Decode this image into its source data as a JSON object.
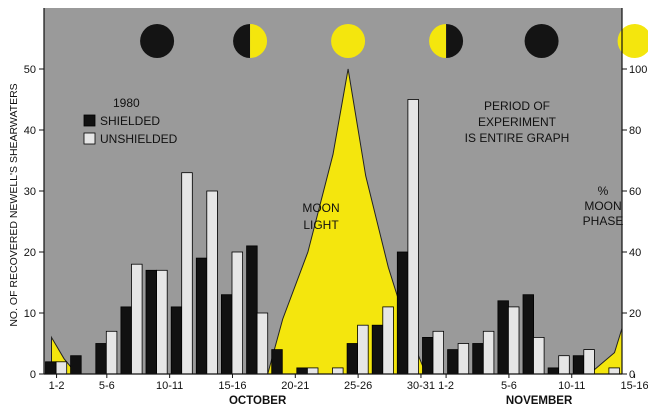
{
  "chart_data": {
    "type": "bar",
    "legend": {
      "year": "1980",
      "entries": [
        "SHIELDED",
        "UNSHIELDED"
      ],
      "placement": "top-left"
    },
    "series": [
      {
        "name": "SHIELDED",
        "color": "#111111",
        "values": [
          2,
          3,
          5,
          11,
          17,
          11,
          19,
          13,
          21,
          4,
          1,
          0,
          5,
          8,
          20,
          6,
          4,
          5,
          12,
          13,
          1,
          3,
          0
        ]
      },
      {
        "name": "UNSHIELDED",
        "color": "#e6e6e6",
        "values": [
          2,
          0,
          7,
          18,
          17,
          33,
          30,
          20,
          10,
          0,
          1,
          1,
          8,
          11,
          45,
          7,
          5,
          7,
          11,
          6,
          3,
          4,
          1
        ]
      }
    ],
    "x_tick_labels": [
      "1-2",
      "5-6",
      "10-11",
      "15-16",
      "20-21",
      "25-26",
      "30-31",
      "1-2",
      "5-6",
      "10-11",
      "15-16"
    ],
    "x_tick_indices": [
      0,
      2,
      4.5,
      7,
      9.5,
      12,
      14.5,
      15.5,
      18,
      20.5,
      23
    ],
    "month_labels": [
      {
        "label": "OCTOBER",
        "at": 8
      },
      {
        "label": "NOVEMBER",
        "at": 19.2
      }
    ],
    "left_axis": {
      "label": "NO. OF RECOVERED NEWELL'S SHEARWATERS",
      "ticks": [
        0,
        10,
        20,
        30,
        40,
        50
      ],
      "ylim": [
        0,
        60
      ]
    },
    "right_axis": {
      "label_lines": [
        "%",
        "MOON",
        "PHASE"
      ],
      "ticks": [
        0,
        20,
        40,
        60,
        80,
        100
      ],
      "ylim": [
        0,
        120
      ]
    },
    "moon_light": {
      "label_lines": [
        "MOON",
        "LIGHT"
      ],
      "points": [
        {
          "x": -0.2,
          "pct": 12
        },
        {
          "x": 0.3,
          "pct": 5
        },
        {
          "x": 0.8,
          "pct": 0
        },
        {
          "x": 8.4,
          "pct": 0
        },
        {
          "x": 9,
          "pct": 18
        },
        {
          "x": 10,
          "pct": 40
        },
        {
          "x": 11,
          "pct": 72
        },
        {
          "x": 11.6,
          "pct": 100
        },
        {
          "x": 12.3,
          "pct": 65
        },
        {
          "x": 13.2,
          "pct": 35
        },
        {
          "x": 14,
          "pct": 14
        },
        {
          "x": 14.7,
          "pct": 0
        },
        {
          "x": 21.2,
          "pct": 0
        },
        {
          "x": 22.2,
          "pct": 7
        },
        {
          "x": 23,
          "pct": 15
        },
        {
          "x": 23.6,
          "pct": 24
        },
        {
          "x": 24,
          "pct": 30
        }
      ]
    },
    "moon_phases": [
      {
        "phase": "new",
        "x": 4
      },
      {
        "phase": "first-quarter",
        "x": 7.7
      },
      {
        "phase": "full",
        "x": 11.6
      },
      {
        "phase": "last-quarter",
        "x": 15.5
      },
      {
        "phase": "new",
        "x": 19.3
      },
      {
        "phase": "full",
        "x": 23
      }
    ],
    "annotation": [
      "PERIOD OF",
      "EXPERIMENT",
      "IS ENTIRE GRAPH"
    ],
    "colors": {
      "background": "#9a9a9a",
      "moonlight": "#f4e60d",
      "moon_dark": "#141414"
    }
  }
}
